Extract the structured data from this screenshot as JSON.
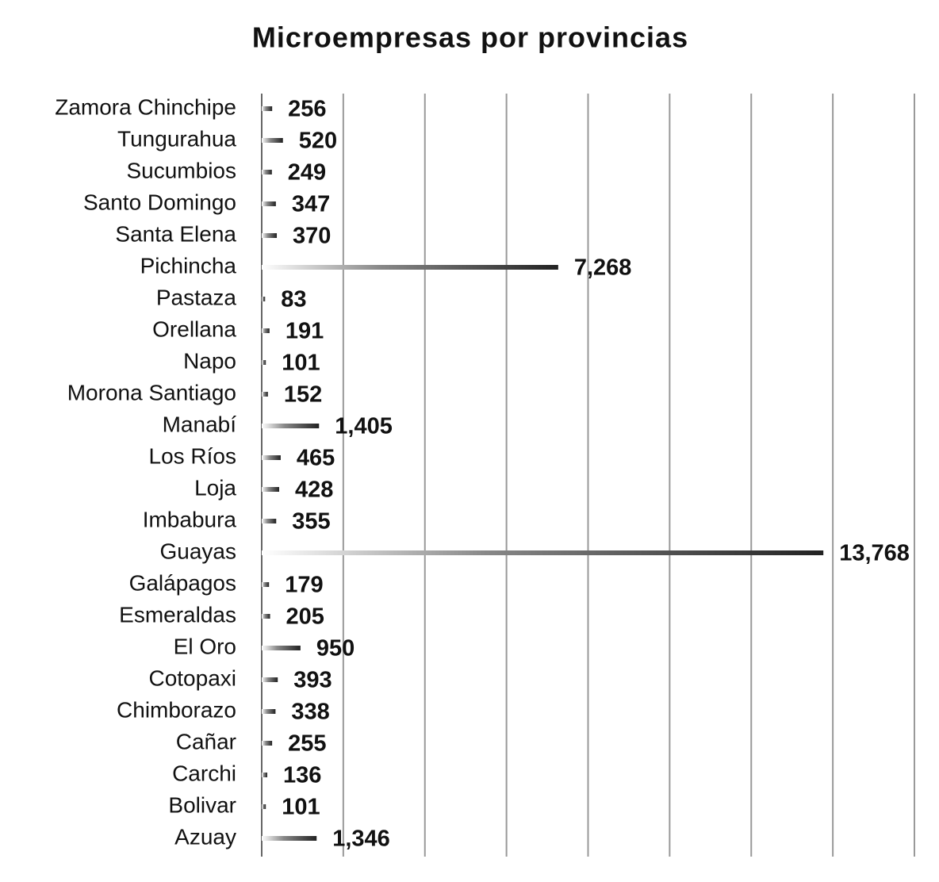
{
  "chart_data": {
    "type": "barh",
    "title": "Microempresas por provincias",
    "categories": [
      "Zamora Chinchipe",
      "Tungurahua",
      "Sucumbios",
      "Santo Domingo",
      "Santa Elena",
      "Pichincha",
      "Pastaza",
      "Orellana",
      "Napo",
      "Morona Santiago",
      "Manabí",
      "Los Ríos",
      "Loja",
      "Imbabura",
      "Guayas",
      "Galápagos",
      "Esmeraldas",
      "El Oro",
      "Cotopaxi",
      "Chimborazo",
      "Cañar",
      "Carchi",
      "Bolivar",
      "Azuay"
    ],
    "values": [
      256,
      520,
      249,
      347,
      370,
      7268,
      83,
      191,
      101,
      152,
      1405,
      465,
      428,
      355,
      13768,
      179,
      205,
      950,
      393,
      338,
      255,
      136,
      101,
      1346
    ],
    "value_labels": [
      "256",
      "520",
      "249",
      "347",
      "370",
      "7,268",
      "83",
      "191",
      "101",
      "152",
      "1,405",
      "465",
      "428",
      "355",
      "13,768",
      "179",
      "205",
      "950",
      "393",
      "338",
      "255",
      "136",
      "101",
      "1,346"
    ],
    "color": "#222222",
    "xlim": [
      0,
      16000
    ],
    "xticks": [
      0,
      2000,
      4000,
      6000,
      8000,
      10000,
      12000,
      14000,
      16000
    ],
    "grid": true
  }
}
